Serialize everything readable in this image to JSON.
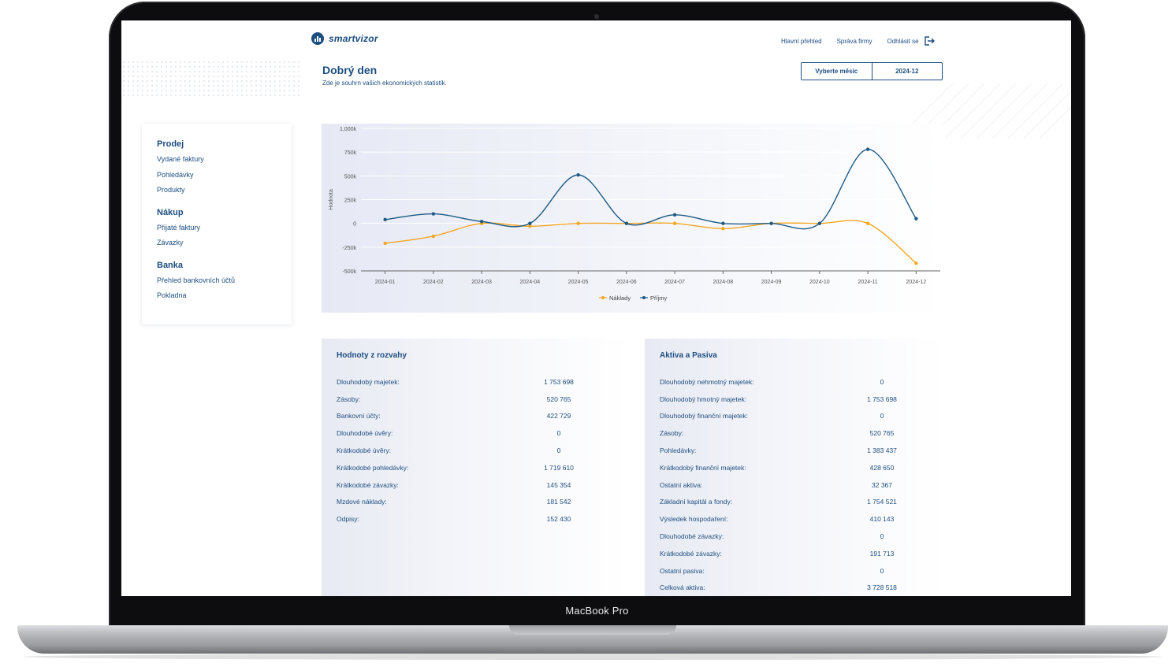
{
  "device": {
    "model_label": "MacBook Pro"
  },
  "header": {
    "logo_text": "smartvizor",
    "nav": {
      "overview": "Hlavní přehled",
      "company_admin": "Správa firmy",
      "logout": "Odhlásit se"
    }
  },
  "greeting": {
    "title": "Dobrý den",
    "subtitle": "Zde je souhrn vašich ekonomických statistik."
  },
  "month_select": {
    "label": "Vyberte měsíc",
    "value": "2024-12"
  },
  "sidebar": [
    {
      "heading": "Prodej",
      "items": [
        "Vydané faktury",
        "Pohledávky",
        "Produkty"
      ]
    },
    {
      "heading": "Nákup",
      "items": [
        "Přijaté faktury",
        "Závazky"
      ]
    },
    {
      "heading": "Banka",
      "items": [
        "Přehled bankovních účtů",
        "Pokladna"
      ]
    }
  ],
  "chart_data": {
    "type": "line",
    "categories": [
      "2024-01",
      "2024-02",
      "2024-03",
      "2024-04",
      "2024-05",
      "2024-06",
      "2024-07",
      "2024-08",
      "2024-09",
      "2024-10",
      "2024-11",
      "2024-12"
    ],
    "series": [
      {
        "name": "Náklady",
        "color": "#f5a623",
        "values": [
          -210000,
          -135000,
          0,
          -30000,
          0,
          0,
          0,
          -55000,
          0,
          0,
          0,
          -420000
        ]
      },
      {
        "name": "Příjmy",
        "color": "#1d5a84",
        "values": [
          40000,
          100000,
          20000,
          0,
          510000,
          0,
          90000,
          0,
          0,
          0,
          780000,
          50000
        ]
      }
    ],
    "ylabel": "Hodnota",
    "ylim": [
      -500000,
      1000000
    ],
    "yticks": [
      "-500k",
      "-250k",
      "0",
      "250k",
      "500k",
      "750k",
      "1,000k"
    ],
    "legend": "bottom-center"
  },
  "balance": {
    "title": "Hodnoty z rozvahy",
    "rows": [
      {
        "label": "Dlouhodobý majetek:",
        "value": "1 753 698"
      },
      {
        "label": "Zásoby:",
        "value": "520 765"
      },
      {
        "label": "Bankovní účty:",
        "value": "422 729"
      },
      {
        "label": "Dlouhodobé úvěry:",
        "value": "0"
      },
      {
        "label": "Krátkodobé úvěry:",
        "value": "0"
      },
      {
        "label": "Krátkodobé pohledávky:",
        "value": "1 719 610"
      },
      {
        "label": "Krátkodobé závazky:",
        "value": "145 354"
      },
      {
        "label": "Mzdové náklady:",
        "value": "181 542"
      },
      {
        "label": "Odpisy:",
        "value": "152 430"
      }
    ]
  },
  "assets": {
    "title": "Aktiva a Pasiva",
    "rows": [
      {
        "label": "Dlouhodobý nehmotný majetek:",
        "value": "0"
      },
      {
        "label": "Dlouhodobý hmotný majetek:",
        "value": "1 753 698"
      },
      {
        "label": "Dlouhodobý finanční majetek:",
        "value": "0"
      },
      {
        "label": "Zásoby:",
        "value": "520 765"
      },
      {
        "label": "Pohledávky:",
        "value": "1 383 437"
      },
      {
        "label": "Krátkodobý finanční majetek:",
        "value": "428 650"
      },
      {
        "label": "Ostatní aktiva:",
        "value": "32 367"
      },
      {
        "label": "Základní kapitál a fondy:",
        "value": "1 754 521"
      },
      {
        "label": "Výsledek hospodaření:",
        "value": "410 143"
      },
      {
        "label": "Dlouhodobé závazky:",
        "value": "0"
      },
      {
        "label": "Krátkodobé závazky:",
        "value": "191 713"
      },
      {
        "label": "Ostatní pasiva:",
        "value": "0"
      },
      {
        "label": "Celková aktiva:",
        "value": "3 728 518"
      }
    ]
  }
}
